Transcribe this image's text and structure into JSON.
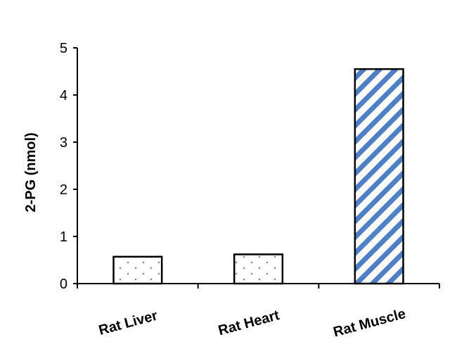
{
  "chart_data": {
    "type": "bar",
    "categories": [
      "Rat Liver",
      "Rat Heart",
      "Rat Muscle"
    ],
    "values": [
      0.57,
      0.62,
      4.55
    ],
    "ylabel": "2-PG (nmol)",
    "xlabel": "",
    "ylim": [
      0,
      5
    ],
    "yticks": [
      0,
      1,
      2,
      3,
      4,
      5
    ],
    "grid": false,
    "legend": "none",
    "bar_patterns": [
      "dotted",
      "dotted",
      "diagonal-stripes"
    ],
    "colors": {
      "stripe": "#4f7fc4",
      "dots": "#7f8f9f",
      "bar_outline": "#000000",
      "axis": "#000000"
    }
  }
}
